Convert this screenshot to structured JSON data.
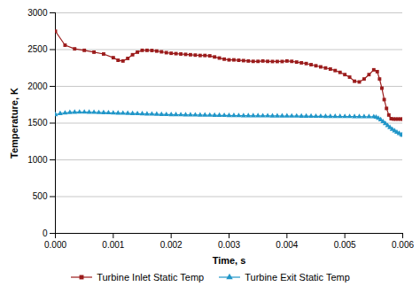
{
  "chart_data": {
    "type": "line",
    "xlabel": "Time, s",
    "ylabel": "Temperature, K",
    "xlim": [
      0.0,
      0.006
    ],
    "ylim": [
      0,
      3000
    ],
    "xticks": [
      {
        "value": 0.0,
        "label": "0.000"
      },
      {
        "value": 0.001,
        "label": "0.001"
      },
      {
        "value": 0.002,
        "label": "0.002"
      },
      {
        "value": 0.003,
        "label": "0.003"
      },
      {
        "value": 0.004,
        "label": "0.004"
      },
      {
        "value": 0.005,
        "label": "0.005"
      },
      {
        "value": 0.006,
        "label": "0.006"
      }
    ],
    "yticks": [
      0,
      500,
      1000,
      1500,
      2000,
      2500,
      3000
    ],
    "grid": "y",
    "legend": "bottom",
    "series": [
      {
        "name": "Turbine Inlet Static Temp",
        "color": "#9b1c1c",
        "marker": "square",
        "x": [
          0.0,
          0.000167,
          0.000333,
          0.0005,
          0.000667,
          0.000833,
          0.001,
          0.001083,
          0.001167,
          0.00125,
          0.001333,
          0.001417,
          0.0015,
          0.001583,
          0.001667,
          0.00175,
          0.001833,
          0.001917,
          0.002,
          0.002083,
          0.002167,
          0.00225,
          0.002333,
          0.002417,
          0.0025,
          0.002583,
          0.002667,
          0.00275,
          0.002833,
          0.002917,
          0.003,
          0.003083,
          0.003167,
          0.00325,
          0.003333,
          0.003417,
          0.0035,
          0.003583,
          0.003667,
          0.00375,
          0.003833,
          0.003917,
          0.004,
          0.004083,
          0.004167,
          0.00425,
          0.004333,
          0.004417,
          0.0045,
          0.004583,
          0.004667,
          0.00475,
          0.004833,
          0.004917,
          0.005,
          0.005083,
          0.005167,
          0.00525,
          0.005333,
          0.005417,
          0.0055,
          0.00556,
          0.0056,
          0.00564,
          0.00568,
          0.00572,
          0.00576,
          0.0058,
          0.00584,
          0.00588,
          0.00592,
          0.00596,
          0.006
        ],
        "values": [
          2750,
          2560,
          2510,
          2490,
          2465,
          2440,
          2390,
          2355,
          2345,
          2380,
          2430,
          2465,
          2490,
          2490,
          2488,
          2480,
          2470,
          2458,
          2450,
          2445,
          2440,
          2435,
          2430,
          2425,
          2420,
          2420,
          2415,
          2400,
          2385,
          2370,
          2360,
          2360,
          2355,
          2350,
          2345,
          2340,
          2340,
          2345,
          2340,
          2338,
          2338,
          2338,
          2345,
          2340,
          2330,
          2320,
          2310,
          2295,
          2280,
          2265,
          2250,
          2235,
          2215,
          2190,
          2160,
          2125,
          2070,
          2060,
          2100,
          2160,
          2225,
          2200,
          2100,
          1975,
          1820,
          1700,
          1610,
          1560,
          1555,
          1555,
          1555,
          1555,
          1555
        ]
      },
      {
        "name": "Turbine Exit Static Temp",
        "color": "#2196c8",
        "marker": "triangle",
        "x": [
          0.0,
          8.3e-05,
          0.000167,
          0.00025,
          0.000333,
          0.000417,
          0.0005,
          0.000583,
          0.000667,
          0.00075,
          0.000833,
          0.000917,
          0.001,
          0.001083,
          0.001167,
          0.00125,
          0.001333,
          0.001417,
          0.0015,
          0.001583,
          0.001667,
          0.00175,
          0.001833,
          0.001917,
          0.002,
          0.002083,
          0.002167,
          0.00225,
          0.002333,
          0.002417,
          0.0025,
          0.002583,
          0.002667,
          0.00275,
          0.002833,
          0.002917,
          0.003,
          0.003083,
          0.003167,
          0.00325,
          0.003333,
          0.003417,
          0.0035,
          0.003583,
          0.003667,
          0.00375,
          0.003833,
          0.003917,
          0.004,
          0.004083,
          0.004167,
          0.00425,
          0.004333,
          0.004417,
          0.0045,
          0.004583,
          0.004667,
          0.00475,
          0.004833,
          0.004917,
          0.005,
          0.005083,
          0.005167,
          0.00525,
          0.005333,
          0.005417,
          0.0055,
          0.00554,
          0.00558,
          0.00562,
          0.00566,
          0.0057,
          0.00574,
          0.00578,
          0.00582,
          0.00586,
          0.0059,
          0.00594,
          0.00598,
          0.006
        ],
        "values": [
          1615,
          1630,
          1638,
          1645,
          1648,
          1650,
          1650,
          1648,
          1646,
          1644,
          1642,
          1640,
          1638,
          1636,
          1634,
          1632,
          1630,
          1628,
          1626,
          1624,
          1622,
          1620,
          1618,
          1616,
          1615,
          1614,
          1613,
          1612,
          1611,
          1610,
          1609,
          1608,
          1607,
          1606,
          1605,
          1604,
          1603,
          1602,
          1601,
          1600,
          1600,
          1599,
          1599,
          1598,
          1598,
          1597,
          1597,
          1596,
          1596,
          1595,
          1595,
          1594,
          1594,
          1593,
          1592,
          1592,
          1591,
          1591,
          1590,
          1590,
          1589,
          1589,
          1588,
          1588,
          1587,
          1587,
          1586,
          1580,
          1565,
          1545,
          1520,
          1495,
          1465,
          1440,
          1415,
          1395,
          1375,
          1358,
          1342,
          1335
        ]
      }
    ]
  }
}
